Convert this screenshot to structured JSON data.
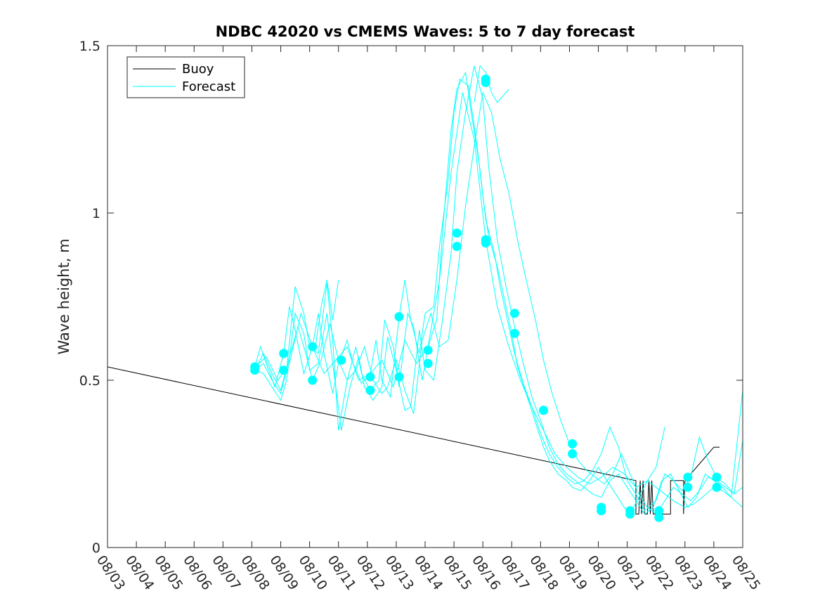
{
  "chart_data": {
    "type": "line",
    "title": "NDBC 42020 vs CMEMS Waves: 5 to 7 day forecast",
    "xlabel": "",
    "ylabel": "Wave height, m",
    "xlim": [
      0,
      22
    ],
    "ylim": [
      0,
      1.5
    ],
    "grid": false,
    "legend_position": "top-left",
    "x_tick_labels": [
      "08/03",
      "08/04",
      "08/05",
      "08/06",
      "08/07",
      "08/08",
      "08/09",
      "08/10",
      "08/11",
      "08/12",
      "08/13",
      "08/14",
      "08/15",
      "08/16",
      "08/17",
      "08/18",
      "08/19",
      "08/20",
      "08/21",
      "08/22",
      "08/23",
      "08/24",
      "08/25"
    ],
    "y_ticks": [
      0,
      0.5,
      1,
      1.5
    ],
    "y_tick_labels": [
      "0",
      "0.5",
      "1",
      "1.5"
    ],
    "colors": {
      "buoy": "#000000",
      "forecast": "#00ffff",
      "axes": "#262626"
    },
    "legend": [
      {
        "name": "Buoy",
        "color": "#000000"
      },
      {
        "name": "Forecast",
        "color": "#00ffff"
      }
    ],
    "series": [
      {
        "name": "Buoy",
        "color": "#000000",
        "x": [
          0,
          18.3,
          18.3,
          18.4,
          18.45,
          18.5,
          18.55,
          18.6,
          18.7,
          18.75,
          18.8,
          18.85,
          18.9,
          18.95,
          19.0,
          19.1,
          19.5,
          19.5,
          19.95,
          19.95,
          20.0,
          20.5,
          21.0,
          21.2
        ],
        "y": [
          0.54,
          0.2,
          0.1,
          0.1,
          0.2,
          0.1,
          0.2,
          0.1,
          0.1,
          0.2,
          0.1,
          0.2,
          0.1,
          0.1,
          0.1,
          0.1,
          0.1,
          0.2,
          0.2,
          0.1,
          0.2,
          0.25,
          0.3,
          0.3
        ]
      },
      {
        "name": "Forecast run 1",
        "color": "#00ffff",
        "x": [
          5.1,
          5.3,
          5.5,
          5.8,
          6.1,
          6.3,
          6.5,
          6.8,
          7.1,
          7.3,
          7.5,
          7.8,
          8.0,
          8.3,
          8.5,
          8.8,
          9.1,
          9.3,
          9.5,
          9.8,
          10.1,
          10.3,
          10.5,
          10.8,
          11.0,
          11.3,
          11.5,
          11.8,
          12.0,
          12.2,
          12.5,
          12.8,
          13.0,
          13.2,
          13.5,
          13.8,
          14.0,
          14.2,
          14.5,
          14.8,
          15.1,
          15.3,
          15.6,
          15.9,
          16.1,
          16.4,
          16.7,
          17.0,
          17.3,
          17.6,
          17.9,
          18.1,
          18.4,
          18.7,
          19.0,
          19.3,
          19.6,
          20.0,
          20.3,
          20.6,
          21.0,
          21.3,
          21.6,
          22.0
        ],
        "y": [
          0.54,
          0.6,
          0.55,
          0.48,
          0.58,
          0.72,
          0.65,
          0.52,
          0.6,
          0.7,
          0.58,
          0.46,
          0.55,
          0.62,
          0.55,
          0.49,
          0.52,
          0.62,
          0.5,
          0.45,
          0.69,
          0.8,
          0.68,
          0.58,
          0.7,
          0.72,
          0.9,
          1.1,
          1.3,
          1.4,
          1.38,
          1.2,
          1.05,
          0.93,
          0.84,
          0.72,
          0.64,
          0.54,
          0.46,
          0.38,
          0.3,
          0.26,
          0.22,
          0.2,
          0.18,
          0.17,
          0.2,
          0.24,
          0.2,
          0.16,
          0.12,
          0.1,
          0.15,
          0.2,
          0.18,
          0.16,
          0.14,
          0.12,
          0.13,
          0.15,
          0.18,
          0.17,
          0.15,
          0.47
        ]
      },
      {
        "name": "Forecast run 2",
        "color": "#00ffff",
        "x": [
          5.1,
          5.4,
          5.7,
          6.0,
          6.2,
          6.5,
          6.8,
          7.0,
          7.3,
          7.6,
          7.8,
          8.0,
          8.3,
          8.6,
          8.8,
          9.1,
          9.4,
          9.6,
          9.9,
          10.1,
          10.4,
          10.6,
          10.9,
          11.1,
          11.4,
          11.6,
          11.9,
          12.1,
          12.4,
          12.6,
          12.9,
          13.1,
          13.4,
          13.6,
          13.9,
          14.1,
          14.4,
          14.7,
          15.0,
          15.3,
          15.6,
          15.9,
          16.2,
          16.5,
          16.8,
          17.1,
          17.4,
          17.7,
          18.0,
          18.3,
          18.6,
          19.0,
          19.3,
          19.6,
          19.9,
          20.2,
          20.5,
          20.8,
          21.1,
          21.4,
          21.7,
          22.0
        ],
        "y": [
          0.53,
          0.55,
          0.5,
          0.46,
          0.53,
          0.78,
          0.7,
          0.6,
          0.58,
          0.79,
          0.62,
          0.35,
          0.5,
          0.6,
          0.52,
          0.47,
          0.5,
          0.68,
          0.6,
          0.48,
          0.7,
          0.66,
          0.5,
          0.6,
          0.68,
          0.94,
          1.25,
          1.37,
          1.42,
          1.3,
          1.13,
          0.98,
          0.88,
          0.78,
          0.66,
          0.58,
          0.49,
          0.42,
          0.34,
          0.28,
          0.24,
          0.21,
          0.19,
          0.2,
          0.23,
          0.28,
          0.36,
          0.3,
          0.2,
          0.16,
          0.11,
          0.14,
          0.22,
          0.2,
          0.17,
          0.21,
          0.33,
          0.26,
          0.21,
          0.19,
          0.16,
          0.32
        ]
      },
      {
        "name": "Forecast run 3",
        "color": "#00ffff",
        "x": [
          5.1,
          5.4,
          5.7,
          6.0,
          6.2,
          6.5,
          6.8,
          7.0,
          7.3,
          7.6,
          7.8,
          8.1,
          8.4,
          8.7,
          8.9,
          9.2,
          9.5,
          9.7,
          10.0,
          10.3,
          10.5,
          10.8,
          11.0,
          11.3,
          11.6,
          11.9,
          12.1,
          12.4,
          12.7,
          13.0,
          13.2,
          13.5,
          13.8,
          14.1,
          14.4,
          14.7,
          15.0,
          15.3,
          15.6,
          15.9,
          16.2,
          16.5,
          16.8,
          17.1,
          17.4,
          17.7,
          18.0,
          18.3,
          18.6,
          18.9,
          19.2,
          19.5,
          19.8,
          20.1,
          20.4,
          20.7,
          21.0,
          21.3,
          21.6,
          22.0
        ],
        "y": [
          0.53,
          0.52,
          0.48,
          0.44,
          0.5,
          0.7,
          0.64,
          0.53,
          0.55,
          0.7,
          0.55,
          0.35,
          0.48,
          0.57,
          0.48,
          0.44,
          0.48,
          0.63,
          0.53,
          0.41,
          0.42,
          0.65,
          0.53,
          0.5,
          0.68,
          0.88,
          1.12,
          1.3,
          1.44,
          1.34,
          1.14,
          0.92,
          0.78,
          0.66,
          0.55,
          0.45,
          0.38,
          0.3,
          0.25,
          0.22,
          0.2,
          0.18,
          0.16,
          0.15,
          0.2,
          0.22,
          0.18,
          0.14,
          0.1,
          0.12,
          0.2,
          0.22,
          0.17,
          0.12,
          0.15,
          0.22,
          0.2,
          0.18,
          0.15,
          0.12
        ]
      },
      {
        "name": "Forecast run 4",
        "color": "#00ffff",
        "x": [
          5.1,
          5.4,
          5.7,
          6.0,
          6.3,
          6.6,
          6.9,
          7.1,
          7.4,
          7.7,
          8.0,
          8.3,
          8.6,
          8.9,
          9.2,
          9.5,
          9.7,
          10.0,
          10.3,
          10.6,
          10.9,
          11.2,
          11.5,
          11.8,
          12.1,
          12.4,
          12.7,
          13.0,
          13.3,
          13.6,
          13.9,
          14.2,
          14.5,
          14.8,
          15.1,
          15.4,
          15.7,
          16.0,
          16.3,
          16.6,
          16.9,
          17.2,
          17.5,
          17.8,
          18.1,
          18.4,
          18.7,
          19.0,
          19.3,
          19.6,
          19.9,
          20.2,
          20.5,
          20.8,
          21.1,
          21.4,
          21.7,
          22.0
        ],
        "y": [
          0.53,
          0.58,
          0.52,
          0.47,
          0.57,
          0.66,
          0.57,
          0.5,
          0.56,
          0.67,
          0.56,
          0.5,
          0.53,
          0.6,
          0.5,
          0.46,
          0.48,
          0.56,
          0.47,
          0.4,
          0.62,
          0.7,
          0.6,
          0.62,
          0.8,
          1.02,
          1.2,
          1.36,
          1.3,
          1.16,
          1.06,
          0.92,
          0.8,
          0.69,
          0.56,
          0.46,
          0.38,
          0.31,
          0.26,
          0.23,
          0.21,
          0.19,
          0.22,
          0.28,
          0.22,
          0.16,
          0.12,
          0.1,
          0.14,
          0.18,
          0.16,
          0.14,
          0.17,
          0.21,
          0.2,
          0.18,
          0.16,
          0.18
        ]
      },
      {
        "name": "Forecast run 5",
        "color": "#00ffff",
        "x": [
          5.1,
          5.5,
          5.9,
          6.3,
          6.7,
          7.1,
          7.5,
          7.9,
          8.3,
          8.7,
          9.1,
          9.5,
          9.9,
          10.3,
          10.7,
          11.1,
          11.5,
          11.9,
          12.3,
          12.7,
          13.1,
          13.5,
          13.9,
          14.3,
          14.7,
          15.1,
          15.5,
          15.9,
          16.3,
          16.7,
          17.1,
          17.5,
          17.9,
          18.3,
          18.7,
          19.0,
          19.3
        ],
        "y": [
          0.54,
          0.57,
          0.5,
          0.55,
          0.7,
          0.6,
          0.52,
          0.56,
          0.6,
          0.5,
          0.52,
          0.56,
          0.48,
          0.62,
          0.55,
          0.6,
          0.8,
          1.12,
          1.36,
          1.22,
          0.92,
          0.72,
          0.6,
          0.5,
          0.42,
          0.35,
          0.28,
          0.24,
          0.21,
          0.19,
          0.21,
          0.24,
          0.22,
          0.18,
          0.2,
          0.24,
          0.36
        ]
      },
      {
        "name": "Forecast run 6",
        "color": "#00ffff",
        "x": [
          7.2,
          7.4,
          7.6,
          7.8,
          8.0
        ],
        "y": [
          0.6,
          0.72,
          0.8,
          0.68,
          0.8
        ]
      },
      {
        "name": "Forecast run 7",
        "color": "#00ffff",
        "x": [
          12.7,
          12.9,
          13.1,
          13.3,
          13.5,
          13.7,
          13.9
        ],
        "y": [
          1.33,
          1.44,
          1.42,
          1.36,
          1.33,
          1.35,
          1.37
        ]
      }
    ],
    "markers": {
      "name": "Forecast points",
      "color": "#00ffff",
      "x": [
        5.1,
        5.1,
        6.1,
        6.1,
        7.1,
        7.1,
        8.1,
        9.1,
        9.1,
        10.1,
        10.1,
        11.1,
        11.1,
        12.1,
        12.1,
        13.1,
        13.1,
        13.1,
        13.1,
        14.1,
        14.1,
        15.1,
        15.1,
        16.1,
        16.1,
        17.1,
        17.1,
        18.1,
        18.1,
        19.1,
        19.1,
        20.1,
        20.1,
        21.1,
        21.1
      ],
      "y": [
        0.54,
        0.53,
        0.58,
        0.53,
        0.6,
        0.5,
        0.56,
        0.51,
        0.47,
        0.69,
        0.51,
        0.59,
        0.55,
        0.94,
        0.9,
        1.4,
        1.39,
        0.92,
        0.91,
        0.7,
        0.64,
        0.41,
        0.41,
        0.31,
        0.28,
        0.12,
        0.11,
        0.11,
        0.1,
        0.11,
        0.09,
        0.21,
        0.18,
        0.21,
        0.18
      ]
    }
  }
}
